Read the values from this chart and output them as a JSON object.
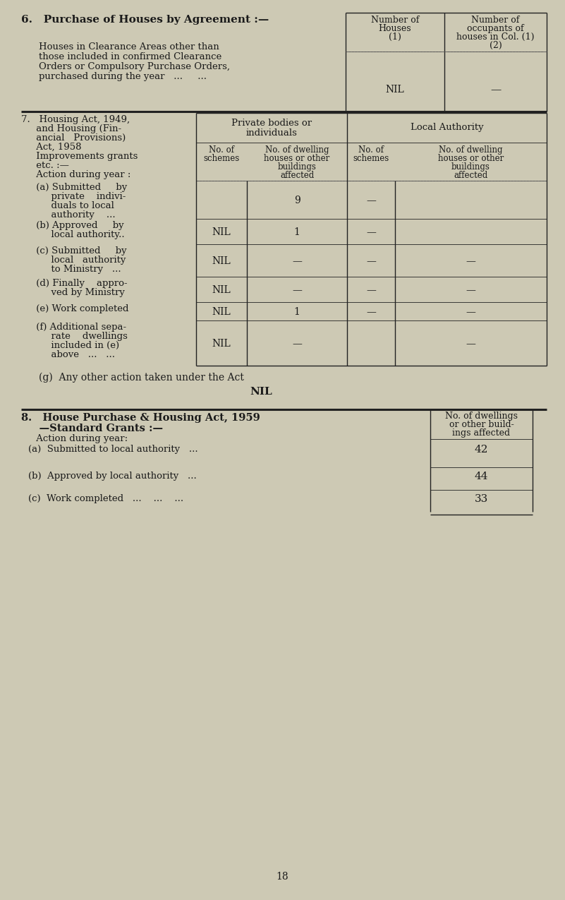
{
  "bg_color": "#cdc9b4",
  "text_color": "#1a1a1a",
  "page_number": "18",
  "fig_w": 8.01,
  "fig_h": 12.75,
  "dpi": 100,
  "s6": {
    "heading": "6.   Purchase of Houses by Agreement :—",
    "body1": "Houses in Clearance Areas other than",
    "body2": "those included in confirmed Clearance",
    "body3": "Orders or Compulsory Purchase Orders,",
    "body4": "purchased during the year   ...     ...",
    "col1_hdr1": "Number of",
    "col1_hdr2": "Houses",
    "col1_hdr3": "(1)",
    "col2_hdr1": "Number of",
    "col2_hdr2": "occupants of",
    "col2_hdr3": "houses in Col. (1)",
    "col2_hdr4": "(2)",
    "val1": "NIL",
    "val2": "—",
    "dash_row": "—    —"
  },
  "s7": {
    "hd1": "7.   Housing Act, 1949,",
    "hd2": "     and Housing (Fin-",
    "hd3": "     ancial   Provisions)",
    "hd4": "     Act, 1958",
    "hd5": "     Improvements grants",
    "hd6": "     etc. :—",
    "hd7": "     Action during year :",
    "hd8": "     (a) Submitted     by",
    "hd9": "          private    indivi-",
    "hd10": "          duals to local",
    "hd11": "          authority    ...",
    "hd12": "     (b) Approved     by",
    "hd13": "          local authority..",
    "hd14": "     (c) Submitted     by",
    "hd15": "          local   authority",
    "hd16": "          to Ministry   ...",
    "hd17": "     (d) Finally    appro-",
    "hd18": "          ved by Ministry",
    "hd19": "     (e) Work completed",
    "hd20": "     (f) Additional sepa-",
    "hd21": "          rate    dwellings",
    "hd22": "          included in (e)",
    "hd23": "          above   ...   ...",
    "priv_hdr1": "Private bodies or",
    "priv_hdr2": "individuals",
    "loc_hdr": "Local Authority",
    "sc1": "No. of",
    "sc2": "schemes",
    "sc3": "No. of dwelling",
    "sc4": "houses or other",
    "sc5": "buildings",
    "sc6": "affected",
    "rows_c1": [
      "",
      "NIL",
      "NIL",
      "NIL",
      "NIL",
      "NIL"
    ],
    "rows_c2": [
      "9",
      "1",
      "—",
      "—",
      "1",
      "—"
    ],
    "rows_c3": [
      "—",
      "—",
      "—",
      "—",
      "—",
      ""
    ],
    "rows_c4": [
      "",
      "",
      "—",
      "—",
      "—",
      "—"
    ],
    "g_line": "(g)  Any other action taken under the Act",
    "g_val": "NIL"
  },
  "s8": {
    "hd1": "8.   House Purchase & Housing Act, 1959",
    "hd2": "     —Standard Grants :—",
    "hd3": "     Action during year:",
    "col_hdr1": "No. of dwellings",
    "col_hdr2": "or other build-",
    "col_hdr3": "ings affected",
    "ra_label": "(a)  Submitted to local authority   ...",
    "ra_val": "42",
    "rb_label": "(b)  Approved by local authority   ...",
    "rb_val": "44",
    "rc_label": "(c)  Work completed   ...    ...    ...",
    "rc_val": "33"
  }
}
